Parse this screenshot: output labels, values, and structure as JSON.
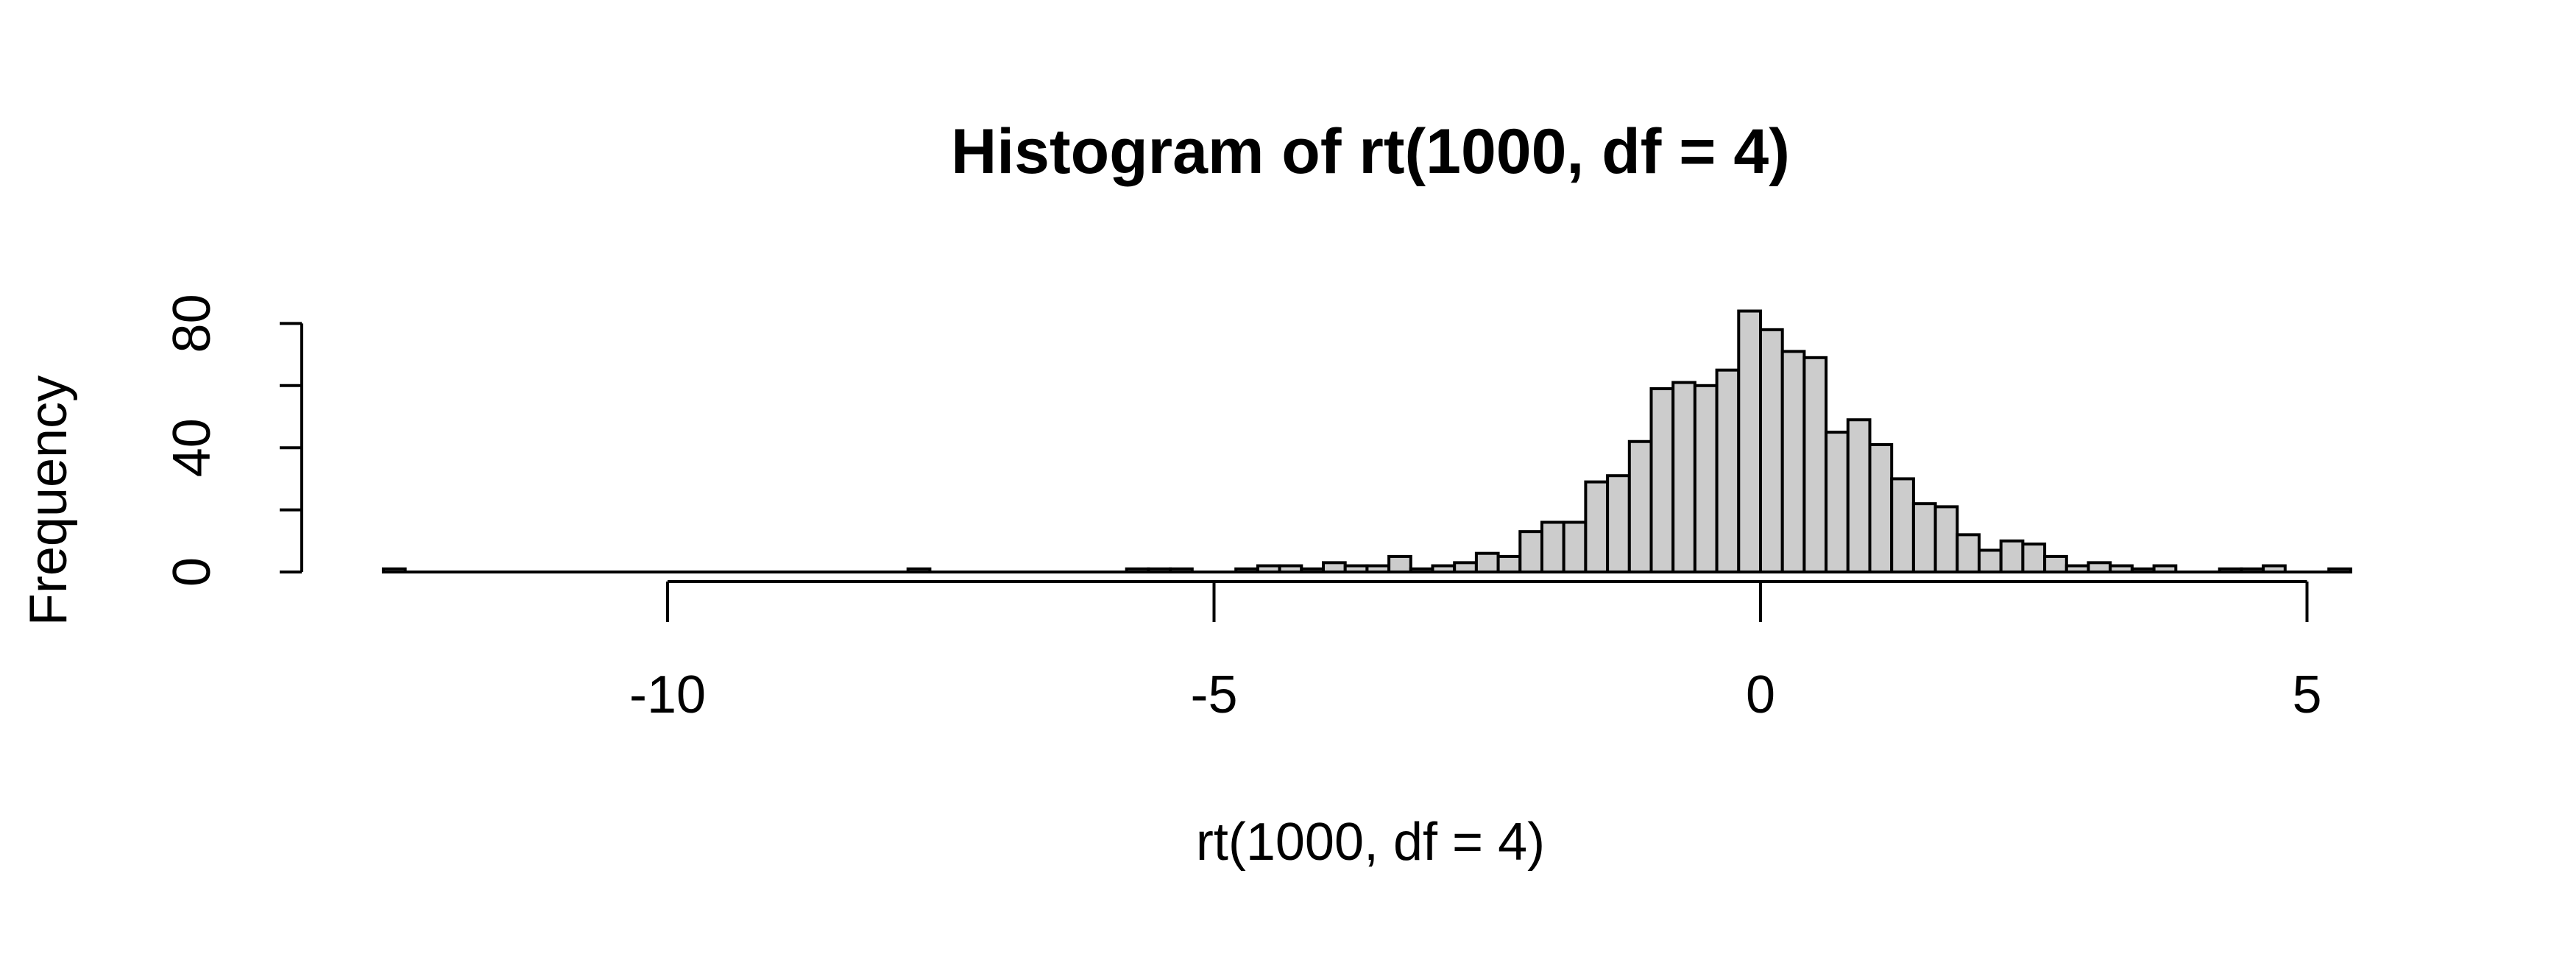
{
  "chart_data": {
    "type": "bar",
    "subtype": "histogram",
    "title": "Histogram of rt(1000, df = 4)",
    "xlabel": "rt(1000, df = 4)",
    "ylabel": "Frequency",
    "bin_width": 0.2,
    "xlim": [
      -12.6,
      5.4
    ],
    "ylim": [
      0,
      84
    ],
    "x_ticks": [
      -10,
      -5,
      0,
      5
    ],
    "x_tick_labels": [
      "-10",
      "-5",
      "0",
      "5"
    ],
    "y_ticks": [
      0,
      20,
      40,
      60,
      80
    ],
    "y_tick_labels": [
      "0",
      "",
      "40",
      "",
      "80"
    ],
    "grid": false,
    "legend": "none",
    "bar_fill": "#cccccc",
    "bar_stroke": "#000000",
    "bins": [
      {
        "x0": -12.6,
        "x1": -12.4,
        "count": 1
      },
      {
        "x0": -7.8,
        "x1": -7.6,
        "count": 1
      },
      {
        "x0": -5.8,
        "x1": -5.6,
        "count": 1
      },
      {
        "x0": -5.6,
        "x1": -5.4,
        "count": 1
      },
      {
        "x0": -5.4,
        "x1": -5.2,
        "count": 1
      },
      {
        "x0": -4.8,
        "x1": -4.6,
        "count": 1
      },
      {
        "x0": -4.6,
        "x1": -4.4,
        "count": 2
      },
      {
        "x0": -4.4,
        "x1": -4.2,
        "count": 2
      },
      {
        "x0": -4.2,
        "x1": -4.0,
        "count": 1
      },
      {
        "x0": -4.0,
        "x1": -3.8,
        "count": 3
      },
      {
        "x0": -3.8,
        "x1": -3.6,
        "count": 2
      },
      {
        "x0": -3.6,
        "x1": -3.4,
        "count": 2
      },
      {
        "x0": -3.4,
        "x1": -3.2,
        "count": 5
      },
      {
        "x0": -3.2,
        "x1": -3.0,
        "count": 1
      },
      {
        "x0": -3.0,
        "x1": -2.8,
        "count": 2
      },
      {
        "x0": -2.8,
        "x1": -2.6,
        "count": 3
      },
      {
        "x0": -2.6,
        "x1": -2.4,
        "count": 6
      },
      {
        "x0": -2.4,
        "x1": -2.2,
        "count": 5
      },
      {
        "x0": -2.2,
        "x1": -2.0,
        "count": 13
      },
      {
        "x0": -2.0,
        "x1": -1.8,
        "count": 16
      },
      {
        "x0": -1.8,
        "x1": -1.6,
        "count": 16
      },
      {
        "x0": -1.6,
        "x1": -1.4,
        "count": 29
      },
      {
        "x0": -1.4,
        "x1": -1.2,
        "count": 31
      },
      {
        "x0": -1.2,
        "x1": -1.0,
        "count": 42
      },
      {
        "x0": -1.0,
        "x1": -0.8,
        "count": 59
      },
      {
        "x0": -0.8,
        "x1": -0.6,
        "count": 61
      },
      {
        "x0": -0.6,
        "x1": -0.4,
        "count": 60
      },
      {
        "x0": -0.4,
        "x1": -0.2,
        "count": 65
      },
      {
        "x0": -0.2,
        "x1": 0.0,
        "count": 84
      },
      {
        "x0": 0.0,
        "x1": 0.2,
        "count": 78
      },
      {
        "x0": 0.2,
        "x1": 0.4,
        "count": 71
      },
      {
        "x0": 0.4,
        "x1": 0.6,
        "count": 69
      },
      {
        "x0": 0.6,
        "x1": 0.8,
        "count": 45
      },
      {
        "x0": 0.8,
        "x1": 1.0,
        "count": 49
      },
      {
        "x0": 1.0,
        "x1": 1.2,
        "count": 41
      },
      {
        "x0": 1.2,
        "x1": 1.4,
        "count": 30
      },
      {
        "x0": 1.4,
        "x1": 1.6,
        "count": 22
      },
      {
        "x0": 1.6,
        "x1": 1.8,
        "count": 21
      },
      {
        "x0": 1.8,
        "x1": 2.0,
        "count": 12
      },
      {
        "x0": 2.0,
        "x1": 2.2,
        "count": 7
      },
      {
        "x0": 2.2,
        "x1": 2.4,
        "count": 10
      },
      {
        "x0": 2.4,
        "x1": 2.6,
        "count": 9
      },
      {
        "x0": 2.6,
        "x1": 2.8,
        "count": 5
      },
      {
        "x0": 2.8,
        "x1": 3.0,
        "count": 2
      },
      {
        "x0": 3.0,
        "x1": 3.2,
        "count": 3
      },
      {
        "x0": 3.2,
        "x1": 3.4,
        "count": 2
      },
      {
        "x0": 3.4,
        "x1": 3.6,
        "count": 1
      },
      {
        "x0": 3.6,
        "x1": 3.8,
        "count": 2
      },
      {
        "x0": 4.2,
        "x1": 4.4,
        "count": 1
      },
      {
        "x0": 4.4,
        "x1": 4.6,
        "count": 1
      },
      {
        "x0": 4.6,
        "x1": 4.8,
        "count": 2
      },
      {
        "x0": 5.2,
        "x1": 5.4,
        "count": 1
      }
    ]
  }
}
